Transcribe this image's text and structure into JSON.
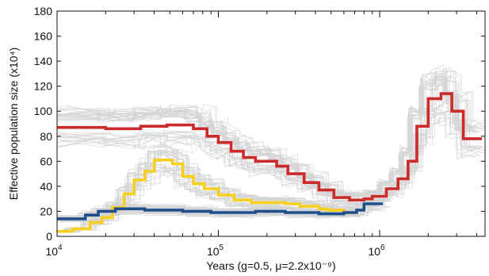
{
  "chart_data": {
    "type": "line",
    "x_scale": "log",
    "xlim": [
      10000,
      4500000
    ],
    "ylim": [
      0,
      180
    ],
    "xlabel": "Years (g=0.5, μ=2.2x10⁻⁹)",
    "ylabel": "Effective population size (x10⁴)",
    "xticks": [
      {
        "value": 10000,
        "base": "10",
        "exp": "4"
      },
      {
        "value": 100000,
        "base": "10",
        "exp": "5"
      },
      {
        "value": 1000000,
        "base": "10",
        "exp": "6"
      }
    ],
    "yticks": [
      0,
      20,
      40,
      60,
      80,
      100,
      120,
      140,
      160,
      180
    ],
    "grid": false,
    "legend": "none",
    "bootstrap_color": "#d3d3d3",
    "series": [
      {
        "color": "#cc2b2b",
        "points": [
          [
            10000,
            87
          ],
          [
            20000,
            87
          ],
          [
            20000,
            86
          ],
          [
            33000,
            86
          ],
          [
            33000,
            88
          ],
          [
            48000,
            88
          ],
          [
            48000,
            89
          ],
          [
            70000,
            89
          ],
          [
            70000,
            86
          ],
          [
            85000,
            86
          ],
          [
            85000,
            80
          ],
          [
            100000,
            80
          ],
          [
            100000,
            75
          ],
          [
            120000,
            75
          ],
          [
            120000,
            68
          ],
          [
            143000,
            68
          ],
          [
            143000,
            63
          ],
          [
            170000,
            63
          ],
          [
            170000,
            60
          ],
          [
            230000,
            60
          ],
          [
            230000,
            56
          ],
          [
            270000,
            56
          ],
          [
            270000,
            50
          ],
          [
            340000,
            50
          ],
          [
            340000,
            43
          ],
          [
            420000,
            43
          ],
          [
            420000,
            37
          ],
          [
            520000,
            37
          ],
          [
            520000,
            31
          ],
          [
            650000,
            31
          ],
          [
            650000,
            29
          ],
          [
            800000,
            29
          ],
          [
            800000,
            30
          ],
          [
            900000,
            30
          ],
          [
            900000,
            32
          ],
          [
            1100000,
            32
          ],
          [
            1100000,
            38
          ],
          [
            1300000,
            38
          ],
          [
            1300000,
            46
          ],
          [
            1500000,
            46
          ],
          [
            1500000,
            60
          ],
          [
            1700000,
            60
          ],
          [
            1700000,
            88
          ],
          [
            2000000,
            88
          ],
          [
            2000000,
            110
          ],
          [
            2400000,
            110
          ],
          [
            2400000,
            114
          ],
          [
            2800000,
            114
          ],
          [
            2800000,
            100
          ],
          [
            3300000,
            100
          ],
          [
            3300000,
            78
          ],
          [
            4300000,
            78
          ]
        ]
      },
      {
        "color": "#f5d020",
        "points": [
          [
            10000,
            4
          ],
          [
            12500,
            4
          ],
          [
            12500,
            6
          ],
          [
            16000,
            6
          ],
          [
            16000,
            11
          ],
          [
            19000,
            11
          ],
          [
            19000,
            15
          ],
          [
            22000,
            15
          ],
          [
            22000,
            23
          ],
          [
            26000,
            23
          ],
          [
            26000,
            34
          ],
          [
            30000,
            34
          ],
          [
            30000,
            45
          ],
          [
            35000,
            45
          ],
          [
            35000,
            52
          ],
          [
            40000,
            52
          ],
          [
            40000,
            61
          ],
          [
            52000,
            61
          ],
          [
            52000,
            58
          ],
          [
            60000,
            58
          ],
          [
            60000,
            48
          ],
          [
            70000,
            48
          ],
          [
            70000,
            42
          ],
          [
            82000,
            42
          ],
          [
            82000,
            38
          ],
          [
            100000,
            38
          ],
          [
            100000,
            33
          ],
          [
            125000,
            33
          ],
          [
            125000,
            29
          ],
          [
            160000,
            29
          ],
          [
            160000,
            27
          ],
          [
            260000,
            27
          ],
          [
            260000,
            26
          ],
          [
            320000,
            26
          ],
          [
            320000,
            24
          ],
          [
            420000,
            24
          ],
          [
            420000,
            22
          ],
          [
            470000,
            22
          ],
          [
            470000,
            21
          ],
          [
            600000,
            21
          ],
          [
            600000,
            19
          ],
          [
            700000,
            19
          ]
        ]
      },
      {
        "color": "#1f4e8c",
        "points": [
          [
            10000,
            14
          ],
          [
            15000,
            14
          ],
          [
            15000,
            17
          ],
          [
            18000,
            17
          ],
          [
            18000,
            20
          ],
          [
            23000,
            20
          ],
          [
            23000,
            22
          ],
          [
            35000,
            22
          ],
          [
            35000,
            21
          ],
          [
            60000,
            21
          ],
          [
            60000,
            20
          ],
          [
            90000,
            20
          ],
          [
            90000,
            19
          ],
          [
            170000,
            19
          ],
          [
            170000,
            20
          ],
          [
            260000,
            20
          ],
          [
            260000,
            19
          ],
          [
            420000,
            19
          ],
          [
            420000,
            18
          ],
          [
            600000,
            18
          ],
          [
            600000,
            19
          ],
          [
            720000,
            19
          ],
          [
            720000,
            21
          ],
          [
            800000,
            21
          ],
          [
            800000,
            26
          ],
          [
            1050000,
            26
          ]
        ]
      }
    ]
  }
}
